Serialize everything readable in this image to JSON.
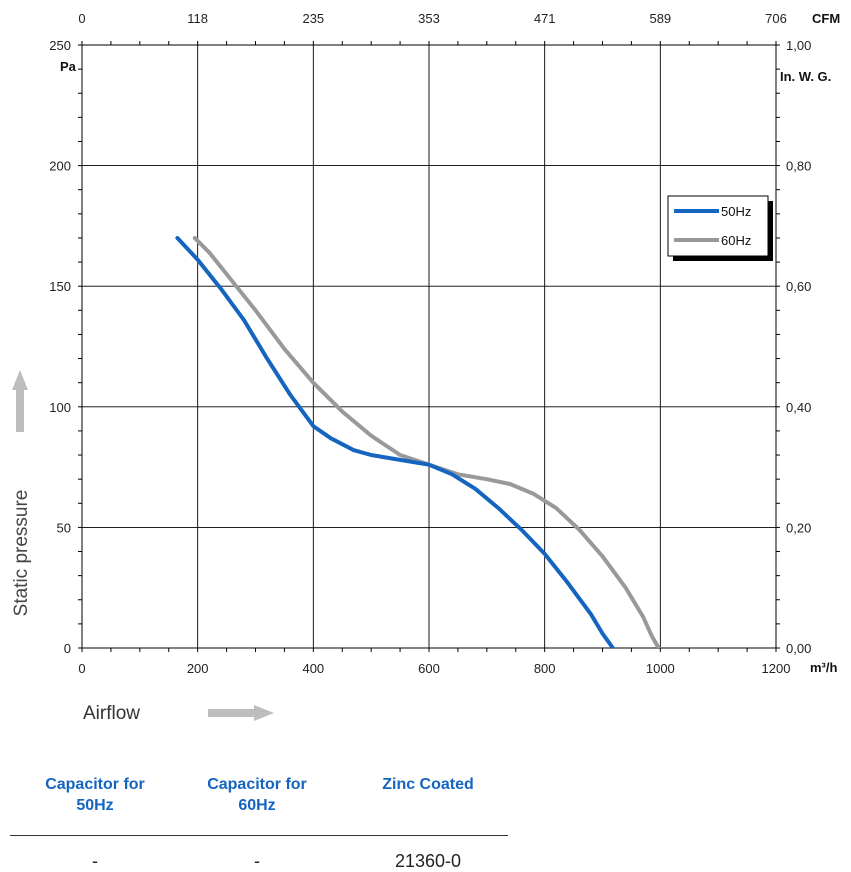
{
  "chart_data": {
    "type": "line",
    "x_unit": "m³/h",
    "x_ticks": [
      0,
      200,
      400,
      600,
      800,
      1000,
      1200
    ],
    "x_top_unit": "CFM",
    "x_top_ticks": [
      "0",
      "118",
      "235",
      "353",
      "471",
      "589",
      "706"
    ],
    "y_unit": "Pa",
    "y_ticks": [
      0,
      50,
      100,
      150,
      200,
      250
    ],
    "y_right_unit": "In. W. G.",
    "y_right_ticks": [
      "0,00",
      "0,20",
      "0,40",
      "0,60",
      "0,80",
      "1,00"
    ],
    "xlim": [
      0,
      1200
    ],
    "ylim": [
      0,
      250
    ],
    "xlabel": "Airflow",
    "ylabel": "Static pressure",
    "grid": true,
    "legend_position": "upper-right",
    "series": [
      {
        "name": "50Hz",
        "color": "#1565c0",
        "x": [
          165,
          200,
          240,
          280,
          320,
          360,
          400,
          430,
          470,
          500,
          550,
          600,
          640,
          680,
          720,
          760,
          800,
          840,
          880,
          900,
          918
        ],
        "y": [
          170,
          161,
          149,
          136,
          120,
          105,
          92,
          87,
          82,
          80,
          78,
          76,
          72,
          66,
          58,
          49,
          39,
          27,
          14,
          6,
          0
        ]
      },
      {
        "name": "60Hz",
        "color": "#999999",
        "x": [
          195,
          220,
          250,
          300,
          350,
          400,
          450,
          500,
          550,
          600,
          650,
          700,
          740,
          780,
          820,
          860,
          900,
          940,
          970,
          985,
          997
        ],
        "y": [
          170,
          164,
          155,
          140,
          124,
          110,
          98,
          88,
          80,
          76,
          72,
          70,
          68,
          64,
          58,
          49,
          38,
          25,
          13,
          5,
          0
        ]
      }
    ]
  },
  "table": {
    "headers": [
      [
        "Capacitor for",
        "50Hz"
      ],
      [
        "Capacitor for",
        "60Hz"
      ],
      [
        "Zinc Coated",
        ""
      ]
    ],
    "row": [
      "-",
      "-",
      "21360-0"
    ]
  }
}
